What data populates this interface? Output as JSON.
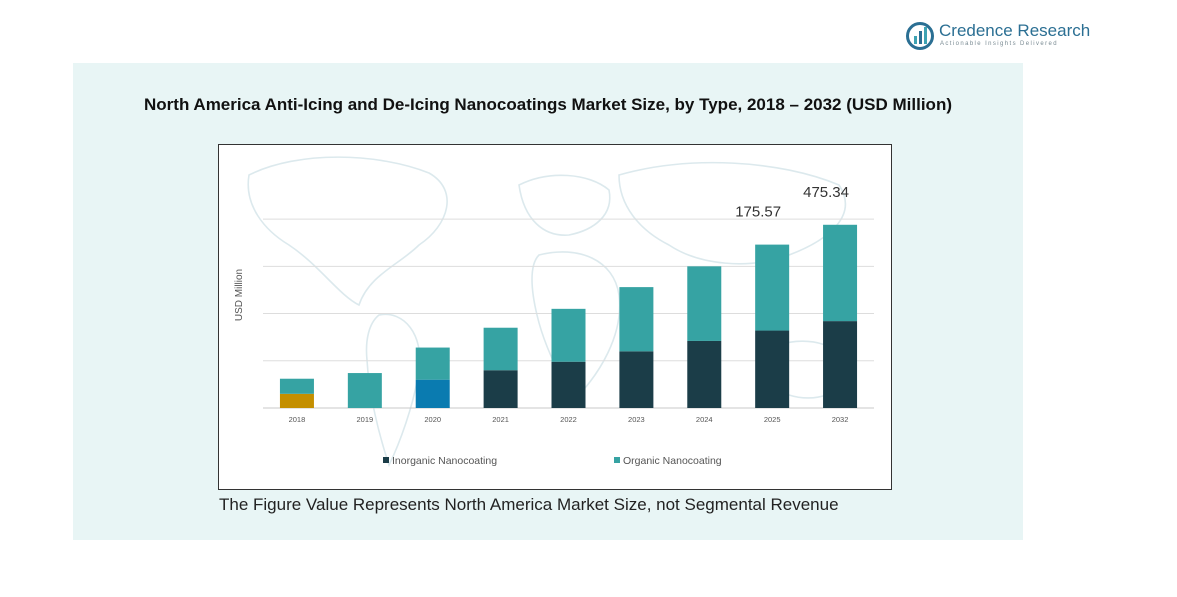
{
  "brand": {
    "name": "Credence Research",
    "tagline": "Actionable Insights Delivered",
    "logo_icon": "bar-chart-icon",
    "color": "#2b6f93"
  },
  "footnote": "The Figure Value Represents North America Market Size, not Segmental Revenue",
  "chart_data": {
    "type": "bar",
    "stacked": true,
    "title": "North America Anti-Icing and De-Icing Nanocoatings Market Size, by Type, 2018 – 2032 (USD Million)",
    "xlabel": "",
    "ylabel": "USD Million",
    "categories": [
      "2018",
      "2019",
      "2020",
      "2021",
      "2022",
      "2023",
      "2024",
      "2025",
      "2032"
    ],
    "series": [
      {
        "name": "Inorganic Nanocoating",
        "color": "#1b3d48",
        "values": [
          15,
          0,
          30,
          40,
          49,
          60,
          71,
          82,
          92
        ]
      },
      {
        "name": "Organic Nanocoating",
        "color": "#36a3a3",
        "values": [
          16,
          37,
          34,
          45,
          56,
          68,
          79,
          91,
          102
        ]
      }
    ],
    "bar_color_overrides": {
      "2018": {
        "Inorganic Nanocoating": "#c48f00"
      },
      "2020": {
        "Inorganic Nanocoating": "#0a7bb0"
      }
    },
    "data_labels": [
      {
        "category": "2025",
        "text": "175.57"
      },
      {
        "category": "2032",
        "text": "475.34"
      }
    ],
    "ylim": [
      0,
      270
    ],
    "gridlines": [
      0,
      50,
      100,
      150,
      200
    ],
    "grid": true,
    "yticks_shown": false,
    "legend": "bottom",
    "background": "world-map-watermark"
  }
}
